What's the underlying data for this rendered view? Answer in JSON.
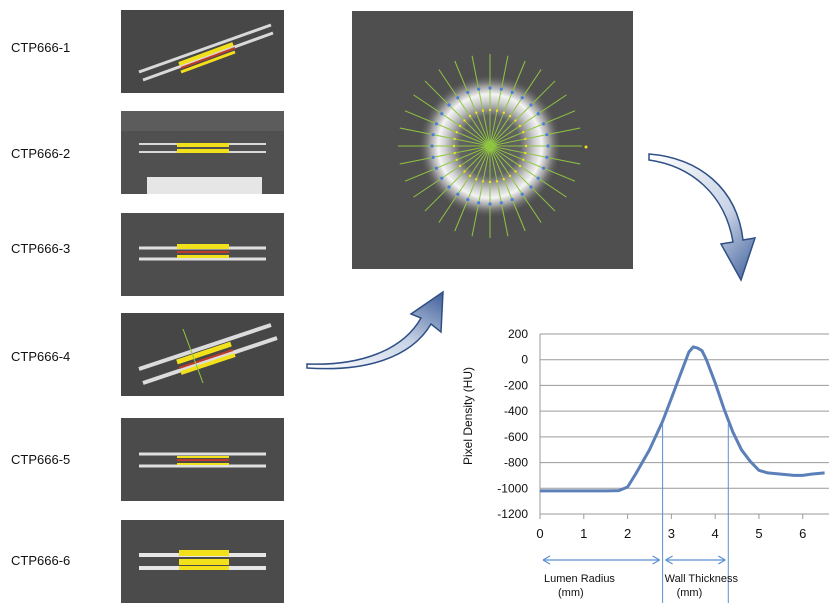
{
  "phantoms": [
    {
      "label": "CTP666-1",
      "angle": -18
    },
    {
      "label": "CTP666-2",
      "angle": 0
    },
    {
      "label": "CTP666-3",
      "angle": 0
    },
    {
      "label": "CTP666-4",
      "angle": -18
    },
    {
      "label": "CTP666-5",
      "angle": 0
    },
    {
      "label": "CTP666-6",
      "angle": 0
    }
  ],
  "colors": {
    "tube": "#e8e8e8",
    "roi_yellow": "#f2e11a",
    "roi_red": "#c0392b",
    "ray_green": "#8fc641",
    "ray_point_blue": "#4a7fd6",
    "curve": "#5b7fb8",
    "annotation": "#5b8fd1",
    "arrow_fill": "#5a7bb3"
  },
  "chart_data": {
    "type": "line",
    "title": "",
    "xlabel": "",
    "ylabel": "Pixel Density (HU)",
    "xlim": [
      0,
      6.6
    ],
    "ylim": [
      -1200,
      200
    ],
    "xticks": [
      "0",
      "1",
      "2",
      "3",
      "4",
      "5",
      "6"
    ],
    "yticks": [
      "200",
      "0",
      "-200",
      "-400",
      "-600",
      "-800",
      "-1000",
      "-1200"
    ],
    "grid": "horizontal",
    "series": [
      {
        "name": "",
        "x": [
          0,
          0.5,
          1.0,
          1.5,
          1.8,
          2.0,
          2.2,
          2.5,
          2.8,
          3.0,
          3.2,
          3.4,
          3.5,
          3.6,
          3.7,
          3.8,
          4.0,
          4.2,
          4.4,
          4.6,
          4.8,
          5.0,
          5.2,
          5.5,
          5.8,
          6.0,
          6.2,
          6.5
        ],
        "y": [
          -1020,
          -1020,
          -1020,
          -1020,
          -1018,
          -990,
          -880,
          -700,
          -480,
          -300,
          -120,
          60,
          100,
          90,
          70,
          0,
          -180,
          -380,
          -560,
          -700,
          -790,
          -860,
          -880,
          -890,
          -900,
          -900,
          -890,
          -880
        ]
      }
    ],
    "annotations": [
      {
        "label": "Lumen Radius",
        "sublabel": "(mm)",
        "from": 0,
        "to": 2.8
      },
      {
        "label": "Wall Thickness",
        "sublabel": "(mm)",
        "from": 2.8,
        "to": 4.3
      }
    ]
  }
}
